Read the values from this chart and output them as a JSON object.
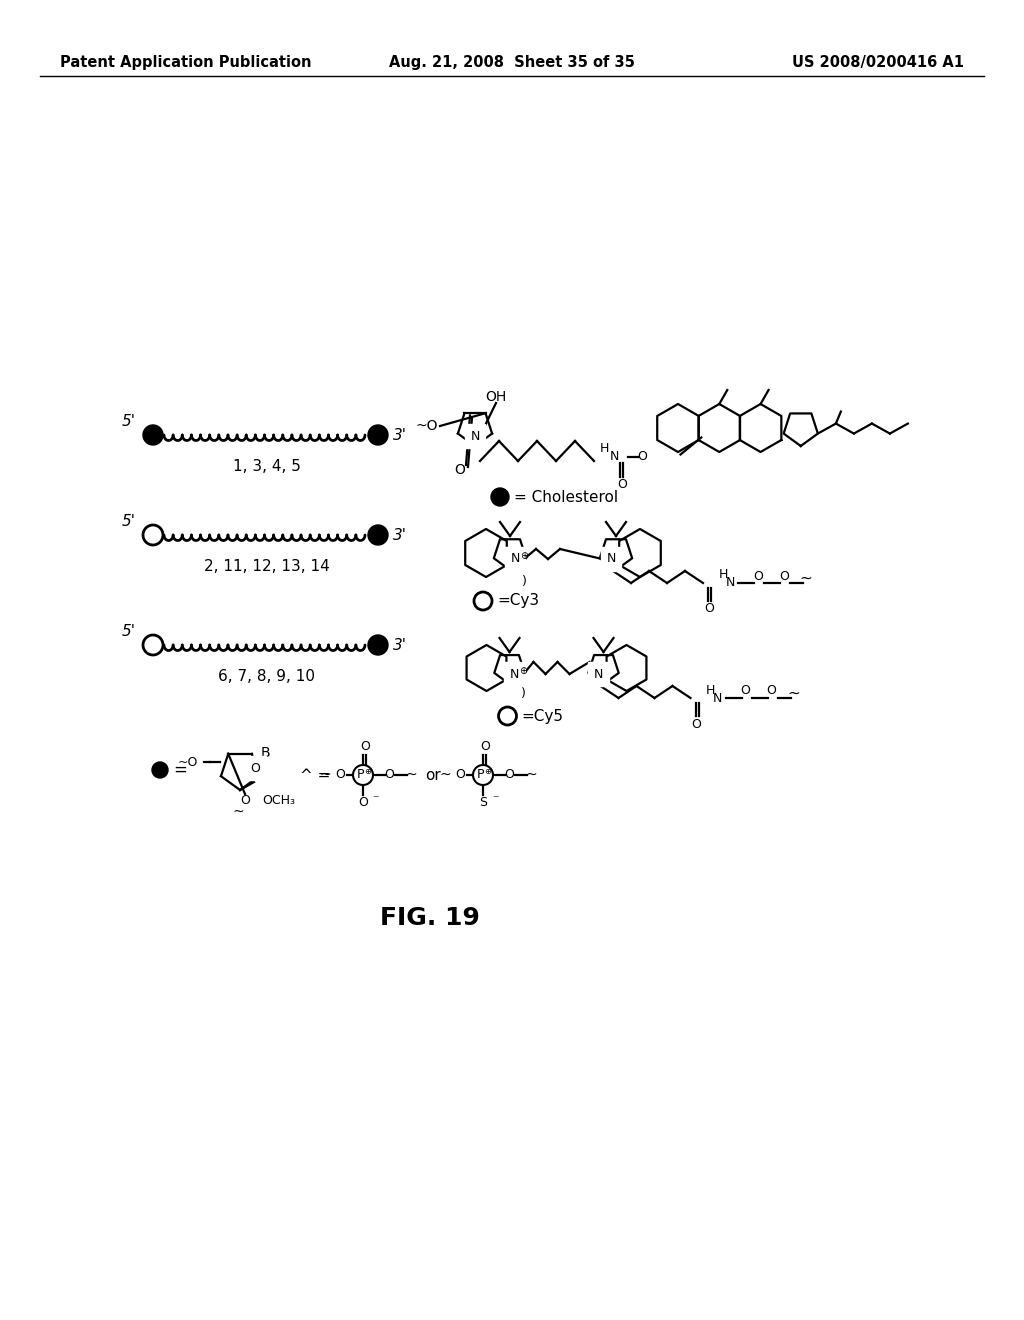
{
  "background_color": "#ffffff",
  "text_color": "#000000",
  "fig_width": 10.24,
  "fig_height": 13.2,
  "dpi": 100,
  "header_left": "Patent Application Publication",
  "header_center": "Aug. 21, 2008  Sheet 35 of 35",
  "header_right": "US 2008/0200416 A1",
  "header_fontsize": 10.5,
  "title": "FIG. 19",
  "title_fontsize": 18,
  "strand1_numbers": "1, 3, 4, 5",
  "strand2_numbers": "2, 11, 12, 13, 14",
  "strand3_numbers": "6, 7, 8, 9, 10",
  "cholesterol_label": "= Cholesterol",
  "cy3_label": "O =Cy3",
  "cy5_label": "O =Cy5",
  "och3_label": "OCH₃",
  "or_label": "or"
}
